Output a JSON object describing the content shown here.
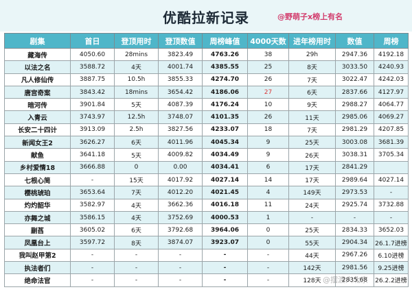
{
  "title": "优酷拉新记录",
  "credit": "@野萌子x榜上有名",
  "watermark": "@摆渡人北京",
  "columns": [
    "剧集",
    "首日",
    "登顶用时",
    "登顶数值",
    "周榜峰值",
    "4000天数",
    "进年榜用时",
    "数值",
    "周榜"
  ],
  "rows": [
    {
      "name": "藏海传",
      "first": "4050.60",
      "topTime": "28mins",
      "topVal": "3823.49",
      "peak": "4763.26",
      "days": "38",
      "yearTime": "29h",
      "val": "2947.36",
      "week": "4192.18"
    },
    {
      "name": "以法之名",
      "first": "3588.72",
      "topTime": "4天",
      "topVal": "4001.74",
      "peak": "4385.55",
      "days": "25",
      "yearTime": "8天",
      "val": "3033.50",
      "week": "4240.93"
    },
    {
      "name": "凡人修仙传",
      "first": "3887.75",
      "topTime": "10.5h",
      "topVal": "3855.33",
      "peak": "4274.70",
      "days": "26",
      "yearTime": "7天",
      "val": "3022.47",
      "week": "4242.03"
    },
    {
      "name": "唐宫奇案",
      "first": "3843.42",
      "topTime": "18mins",
      "topVal": "3654.42",
      "peak": "4186.06",
      "days": "27",
      "yearTime": "6天",
      "val": "2837.66",
      "week": "4127.97",
      "daysRed": true
    },
    {
      "name": "暗河传",
      "first": "3901.84",
      "topTime": "5天",
      "topVal": "4087.39",
      "peak": "4176.24",
      "days": "10",
      "yearTime": "9天",
      "val": "2988.27",
      "week": "4064.77"
    },
    {
      "name": "入青云",
      "first": "3743.97",
      "topTime": "12.5h",
      "topVal": "3748.07",
      "peak": "4101.35",
      "days": "26",
      "yearTime": "11天",
      "val": "2985.06",
      "week": "4069.27"
    },
    {
      "name": "长安二十四计",
      "first": "3913.09",
      "topTime": "2.5h",
      "topVal": "3827.56",
      "peak": "4233.07",
      "days": "18",
      "yearTime": "7天",
      "val": "2981.29",
      "week": "4207.85"
    },
    {
      "name": "新闻女王2",
      "first": "3626.27",
      "topTime": "6天",
      "topVal": "4011.96",
      "peak": "4045.34",
      "days": "9",
      "yearTime": "25天",
      "val": "3003.08",
      "week": "3681.39"
    },
    {
      "name": "献鱼",
      "first": "3641.18",
      "topTime": "5天",
      "topVal": "4009.82",
      "peak": "4034.49",
      "days": "9",
      "yearTime": "26天",
      "val": "3038.31",
      "week": "3705.34"
    },
    {
      "name": "乡村爱情18",
      "first": "3666.88",
      "topTime": "0",
      "topVal": "0.00",
      "peak": "4034.41",
      "days": "6",
      "yearTime": "17天",
      "val": "2841.29",
      "week": ""
    },
    {
      "name": "七根心简",
      "first": "-",
      "topTime": "15天",
      "topVal": "4017.92",
      "peak": "4027.14",
      "days": "14",
      "yearTime": "17天",
      "val": "2989.64",
      "week": "4027.14"
    },
    {
      "name": "樱桃琥珀",
      "first": "3653.64",
      "topTime": "7天",
      "topVal": "4012.20",
      "peak": "4021.45",
      "days": "4",
      "yearTime": "149天",
      "val": "2973.53",
      "week": "-"
    },
    {
      "name": "灼灼韶华",
      "first": "3582.97",
      "topTime": "4天",
      "topVal": "3662.36",
      "peak": "4016.18",
      "days": "11",
      "yearTime": "24天",
      "val": "2925.74",
      "week": "3732.88"
    },
    {
      "name": "亦舞之城",
      "first": "3586.15",
      "topTime": "4天",
      "topVal": "3752.69",
      "peak": "4000.53",
      "days": "1",
      "yearTime": "-",
      "val": "-",
      "week": "-"
    },
    {
      "name": "蒯萏",
      "first": "3605.02",
      "topTime": "6天",
      "topVal": "3792.68",
      "peak": "3964.06",
      "days": "0",
      "yearTime": "25天",
      "val": "2834.33",
      "week": "3652.03"
    },
    {
      "name": "凤凰台上",
      "first": "3597.72",
      "topTime": "8天",
      "topVal": "3874.07",
      "peak": "3923.07",
      "days": "0",
      "yearTime": "55天",
      "val": "2904.34",
      "week": "26.1.7进榜"
    },
    {
      "name": "我叫赵甲第2",
      "first": "-",
      "topTime": "-",
      "topVal": "-",
      "peak": "-",
      "days": "-",
      "yearTime": "44天",
      "val": "2967.26",
      "week": "6.10进榜"
    },
    {
      "name": "执法者们",
      "first": "-",
      "topTime": "-",
      "topVal": "-",
      "peak": "-",
      "days": "-",
      "yearTime": "142天",
      "val": "2981.56",
      "week": "9.25进榜"
    },
    {
      "name": "绝命法官",
      "first": "-",
      "topTime": "-",
      "topVal": "-",
      "peak": "-",
      "days": "-",
      "yearTime": "128天",
      "val": "2835.68",
      "week": "26.2.2进榜"
    }
  ]
}
